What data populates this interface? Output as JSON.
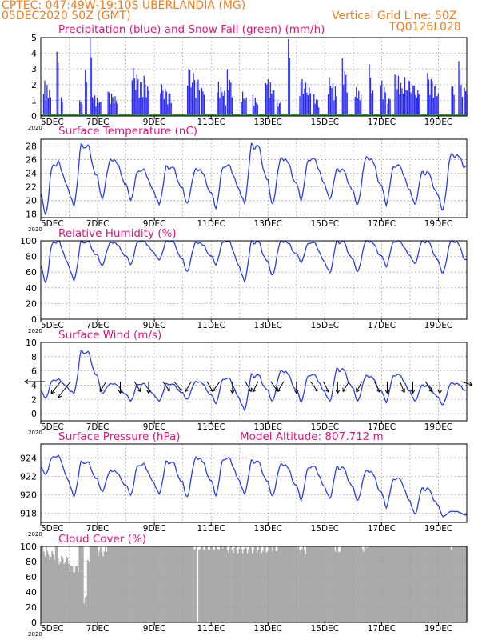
{
  "header": {
    "line1": "CPTEC:   047:49W-19:10S  UBERLANDIA (MG)",
    "line2": "05DEC2020 50Z (GMT)",
    "right1": "Vertical Grid Line: 50Z",
    "right2": "TQ0126L028"
  },
  "colors": {
    "precip": "#2b2bef",
    "snow": "#1fa11f",
    "line": "#2b3fe0",
    "cloud": "#aaaaaa",
    "title": "#e0157d",
    "header": "#f07d1e",
    "grid": "#9a9a9a"
  },
  "x_axis": {
    "days": 15,
    "tick_labels": [
      "5DEC",
      "7DEC",
      "9DEC",
      "11DEC",
      "13DEC",
      "15DEC",
      "17DEC",
      "19DEC"
    ],
    "tick_days": [
      0,
      2,
      4,
      6,
      8,
      10,
      12,
      14
    ],
    "year_label": "2020"
  },
  "chart_data": [
    {
      "type": "bar",
      "title": "Precipitation (blue) and Snow Fall (green) (mm/h)",
      "ylim": [
        0,
        5
      ],
      "yticks": [
        "0",
        "1",
        "2",
        "3",
        "4",
        "5"
      ],
      "yvals": [
        0,
        1,
        2,
        3,
        4,
        5
      ],
      "series": [
        {
          "name": "precipitation",
          "events": [
            [
              0.08,
              0.35,
              2.4
            ],
            [
              0.55,
              0.62,
              4.1
            ],
            [
              0.7,
              0.75,
              1.2
            ],
            [
              1.35,
              1.45,
              1.0
            ],
            [
              1.55,
              1.6,
              2.9
            ],
            [
              1.72,
              1.77,
              5.0
            ],
            [
              1.8,
              2.1,
              1.5
            ],
            [
              2.35,
              2.7,
              1.7
            ],
            [
              3.2,
              3.6,
              3.2
            ],
            [
              3.62,
              3.8,
              2.6
            ],
            [
              4.2,
              4.6,
              2.1
            ],
            [
              5.15,
              5.6,
              3.3
            ],
            [
              5.65,
              5.75,
              1.8
            ],
            [
              6.2,
              6.5,
              2.3
            ],
            [
              6.55,
              6.75,
              3.0
            ],
            [
              7.05,
              7.25,
              1.7
            ],
            [
              7.45,
              7.65,
              1.4
            ],
            [
              7.9,
              8.2,
              2.7
            ],
            [
              8.3,
              8.45,
              1.4
            ],
            [
              8.7,
              8.75,
              4.9
            ],
            [
              9.1,
              9.5,
              2.6
            ],
            [
              9.6,
              9.8,
              1.4
            ],
            [
              10.1,
              10.4,
              2.7
            ],
            [
              10.6,
              10.8,
              3.7
            ],
            [
              11.05,
              11.3,
              2.0
            ],
            [
              11.55,
              11.7,
              3.4
            ],
            [
              11.95,
              12.15,
              2.5
            ],
            [
              12.2,
              12.3,
              1.5
            ],
            [
              12.45,
              12.75,
              3.0
            ],
            [
              12.8,
              13.3,
              2.6
            ],
            [
              13.2,
              13.35,
              1.9
            ],
            [
              13.6,
              14.0,
              2.8
            ],
            [
              14.45,
              14.55,
              2.2
            ],
            [
              14.7,
              14.85,
              3.5
            ],
            [
              14.9,
              15.0,
              1.8
            ]
          ]
        },
        {
          "name": "snowfall",
          "values": [
            0
          ]
        }
      ]
    },
    {
      "type": "line",
      "title": "Surface Temperature (nC)",
      "ylim": [
        17.5,
        29
      ],
      "yticks": [
        "18",
        "20",
        "22",
        "24",
        "26",
        "28"
      ],
      "yvals": [
        18,
        20,
        22,
        24,
        26,
        28
      ],
      "series": [
        {
          "name": "temperature",
          "daily_max": [
            25.5,
            28.2,
            26.0,
            24.5,
            25.0,
            24.6,
            25.2,
            28.2,
            26.2,
            26.2,
            24.6,
            26.3,
            25.2,
            24.2,
            26.8
          ],
          "daily_min": [
            18.0,
            19.0,
            20.2,
            20.1,
            19.3,
            19.5,
            19.0,
            19.4,
            19.3,
            20.2,
            20.1,
            19.3,
            19.5,
            19.3,
            18.5
          ],
          "end_value": 23.6
        }
      ]
    },
    {
      "type": "line",
      "title": "Relative Humidity (%)",
      "ylim": [
        0,
        100
      ],
      "yticks": [
        "0",
        "20",
        "40",
        "60",
        "80",
        "100"
      ],
      "yvals": [
        0,
        20,
        40,
        60,
        80,
        100
      ],
      "series": [
        {
          "name": "humidity",
          "daily_min": [
            47,
            48,
            68,
            70,
            75,
            60,
            70,
            47,
            55,
            73,
            58,
            60,
            68,
            70,
            58
          ],
          "daily_max": [
            100,
            100,
            98,
            100,
            100,
            98,
            100,
            100,
            100,
            98,
            100,
            100,
            100,
            100,
            100
          ]
        }
      ]
    },
    {
      "type": "line",
      "title": "Surface Wind (m/s)",
      "ylim": [
        -1,
        10
      ],
      "yticks": [
        "0",
        "2",
        "4",
        "6",
        "8",
        "10"
      ],
      "yvals": [
        0,
        2,
        4,
        6,
        8,
        10
      ],
      "series": [
        {
          "name": "wind_speed",
          "daily_min": [
            2.2,
            2.7,
            2.8,
            1.8,
            1.7,
            2.0,
            1.5,
            0.4,
            1.7,
            1.7,
            1.6,
            1.7,
            1.7,
            1.7,
            1.2
          ],
          "daily_max": [
            4.8,
            8.8,
            4.2,
            4.2,
            4.2,
            4.5,
            5.0,
            5.5,
            6.0,
            5.5,
            6.3,
            5.3,
            5.5,
            4.0,
            4.3
          ],
          "end_value": 2.5
        }
      ],
      "arrows": {
        "times": [
          0.15,
          0.7,
          1.05,
          2.3,
          2.8,
          3.3,
          3.8,
          4.3,
          4.7,
          5.3,
          5.85,
          6.3,
          6.75,
          7.2,
          7.65,
          8.1,
          8.55,
          9.0,
          9.5,
          9.95,
          10.45,
          10.85,
          11.3,
          11.75,
          12.2,
          12.65,
          13.1,
          13.55,
          14.05,
          14.8
        ],
        "lengths": [
          0.8,
          0.5,
          0.8,
          0.3,
          0.3,
          0.3,
          0.3,
          0.3,
          0.3,
          0.3,
          0.3,
          0.3,
          0.3,
          0.3,
          0.3,
          0.3,
          0.3,
          0.3,
          0.3,
          0.3,
          0.3,
          0.3,
          0.3,
          0.3,
          0.3,
          0.3,
          0.3,
          0.3,
          0.3,
          0.3
        ],
        "dirs": [
          [
            -1,
            0
          ],
          [
            -0.8,
            1
          ],
          [
            -0.8,
            1
          ],
          [
            -0.6,
            1
          ],
          [
            0,
            1
          ],
          [
            0.6,
            1
          ],
          [
            0,
            1
          ],
          [
            0.7,
            1
          ],
          [
            0.8,
            1
          ],
          [
            -0.6,
            1
          ],
          [
            0.6,
            1
          ],
          [
            -0.7,
            1
          ],
          [
            0,
            1
          ],
          [
            0.6,
            1
          ],
          [
            -0.5,
            1
          ],
          [
            0.7,
            1
          ],
          [
            -0.6,
            1
          ],
          [
            0,
            1
          ],
          [
            0.7,
            1
          ],
          [
            0.5,
            1
          ],
          [
            0,
            1
          ],
          [
            -0.6,
            1
          ],
          [
            -0.5,
            1
          ],
          [
            0.5,
            1
          ],
          [
            0,
            1
          ],
          [
            0.4,
            1
          ],
          [
            0,
            1
          ],
          [
            0.6,
            1
          ],
          [
            0,
            1
          ],
          [
            1,
            0.3
          ]
        ]
      }
    },
    {
      "type": "line",
      "title": "Surface Pressure (hPa)",
      "extra_label": "Model Altitude: 807.712  m",
      "ylim": [
        917,
        925.5
      ],
      "yticks": [
        "918",
        "920",
        "922",
        "924"
      ],
      "yvals": [
        918,
        920,
        922,
        924
      ],
      "series": [
        {
          "name": "pressure",
          "daily_max": [
            924.2,
            923.6,
            922.6,
            923.3,
            923.6,
            924.0,
            924.0,
            923.7,
            923.3,
            923.1,
            923.0,
            922.6,
            921.8,
            920.7,
            918.2
          ],
          "daily_min": [
            922.2,
            919.7,
            920.3,
            920.0,
            920.0,
            919.7,
            920.0,
            920.0,
            919.8,
            919.5,
            919.5,
            919.3,
            918.7,
            917.8,
            917.6
          ],
          "end_value": 917.5
        }
      ]
    },
    {
      "type": "area",
      "title": "Cloud Cover (%)",
      "ylim": [
        0,
        100
      ],
      "yticks": [
        "0",
        "20",
        "40",
        "60",
        "80",
        "100"
      ],
      "yvals": [
        0,
        20,
        40,
        60,
        80,
        100
      ],
      "series": [
        {
          "name": "cloud_cover",
          "base": 100,
          "dips": [
            [
              0.05,
              0.15,
              93
            ],
            [
              0.2,
              0.5,
              88
            ],
            [
              0.55,
              1.0,
              82
            ],
            [
              1.0,
              1.3,
              70
            ],
            [
              1.5,
              1.6,
              30
            ],
            [
              1.6,
              1.7,
              85
            ],
            [
              2.0,
              2.3,
              93
            ],
            [
              5.3,
              6.4,
              100
            ],
            [
              6.5,
              8.0,
              97
            ],
            [
              8.1,
              8.3,
              98
            ],
            [
              9.0,
              9.3,
              96
            ],
            [
              10.3,
              10.6,
              97
            ],
            [
              11.3,
              11.5,
              99
            ],
            [
              14.4,
              14.5,
              97
            ]
          ],
          "gaps": [
            5.5
          ]
        }
      ]
    }
  ]
}
